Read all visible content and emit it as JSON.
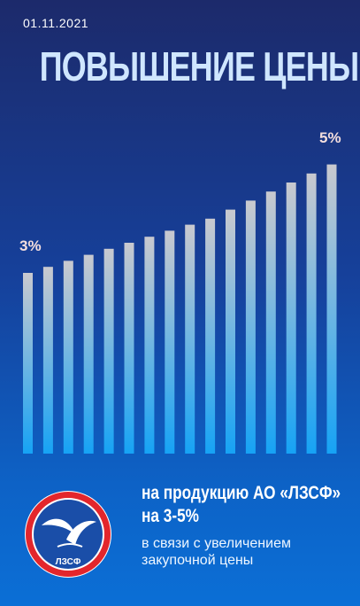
{
  "date": "01.11.2021",
  "title": "ПОВЫШЕНИЕ ЦЕНЫ",
  "chart_data": {
    "type": "bar",
    "series": [
      {
        "values": [
          3,
          3.1,
          3.2,
          3.3,
          3.4,
          3.5,
          3.6,
          3.7,
          3.8,
          3.9,
          4.05,
          4.2,
          4.35,
          4.5,
          4.65,
          4.8
        ]
      }
    ],
    "start_label": "3%",
    "end_label": "5%",
    "ylim": [
      0,
      5
    ]
  },
  "bottom": {
    "line1": "на продукцию АО «ЛЗСФ»",
    "line2": "на 3-5%",
    "line3": "в связи с увеличением",
    "line4": "закупочной цены"
  },
  "logo": {
    "text": "ЛЗСФ"
  },
  "colors": {
    "ring": "#e3262c",
    "bar_top": "#c9c9cf",
    "bar_bottom": "#16a3f5"
  }
}
